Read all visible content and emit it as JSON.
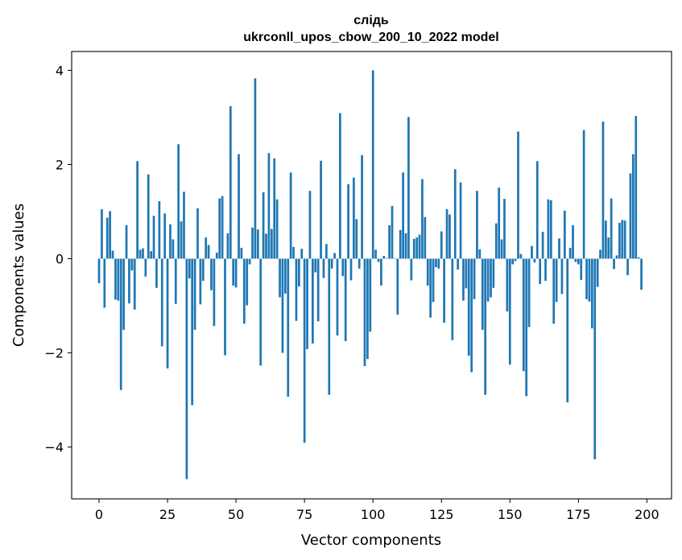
{
  "chart_data": {
    "type": "bar",
    "title_line1": "слідь",
    "title_line2": "ukrconll_upos_cbow_200_10_2022 model",
    "xlabel": "Vector components",
    "ylabel": "Components values",
    "xlim": [
      -10,
      209
    ],
    "ylim": [
      -5.1,
      4.4
    ],
    "x_ticks": [
      0,
      25,
      50,
      75,
      100,
      125,
      150,
      175,
      200
    ],
    "y_ticks": [
      -4,
      -2,
      0,
      2,
      4
    ],
    "x_tick_labels": [
      "0",
      "25",
      "50",
      "75",
      "100",
      "125",
      "150",
      "175",
      "200"
    ],
    "y_tick_labels": [
      "−4",
      "−2",
      "0",
      "2",
      "4"
    ],
    "grid": false,
    "bar_color": "#1f77b4",
    "values": [
      -0.52,
      1.05,
      -1.04,
      0.87,
      1.01,
      0.17,
      -0.87,
      -0.89,
      -2.79,
      -1.51,
      0.71,
      -0.95,
      -0.25,
      -1.08,
      2.07,
      0.19,
      0.22,
      -0.38,
      1.79,
      0.16,
      0.91,
      -0.62,
      1.22,
      -1.86,
      0.96,
      -2.33,
      0.73,
      0.41,
      -0.96,
      2.43,
      0.79,
      1.42,
      -4.68,
      -0.42,
      -3.11,
      -1.51,
      1.07,
      -0.97,
      -0.47,
      0.45,
      0.29,
      -0.67,
      -1.43,
      0.13,
      1.28,
      1.33,
      -2.05,
      0.54,
      3.24,
      -0.57,
      -0.61,
      2.22,
      0.23,
      -1.38,
      -0.99,
      -0.12,
      0.66,
      3.83,
      0.62,
      -2.27,
      1.41,
      0.53,
      2.24,
      0.63,
      2.13,
      1.26,
      -0.82,
      -2.0,
      -0.74,
      -2.93,
      1.83,
      0.25,
      -1.32,
      -0.59,
      0.21,
      -3.91,
      -1.92,
      1.44,
      -1.8,
      -0.29,
      -1.33,
      2.08,
      -0.41,
      0.31,
      -2.89,
      -0.21,
      0.12,
      -1.63,
      3.09,
      -0.37,
      -1.75,
      1.58,
      -0.46,
      1.72,
      0.84,
      -0.21,
      2.2,
      -2.28,
      -2.13,
      -1.55,
      4.0,
      0.19,
      -0.07,
      -0.57,
      0.06,
      0.01,
      0.71,
      1.12,
      0.01,
      -1.19,
      0.61,
      1.83,
      0.54,
      3.01,
      -0.46,
      0.42,
      0.45,
      0.51,
      1.69,
      0.88,
      -0.57,
      -1.25,
      -0.92,
      -0.18,
      -0.21,
      0.58,
      -1.36,
      1.05,
      0.94,
      -1.73,
      1.9,
      -0.23,
      1.62,
      -0.89,
      -0.63,
      -2.06,
      -2.41,
      -0.86,
      1.44,
      0.2,
      -1.51,
      -2.89,
      -0.91,
      -0.82,
      -0.62,
      0.75,
      1.51,
      0.41,
      1.27,
      -1.12,
      -2.25,
      -0.12,
      -0.05,
      2.7,
      0.1,
      -2.39,
      -2.92,
      -1.45,
      0.27,
      -0.08,
      2.07,
      -0.54,
      0.57,
      -0.47,
      1.26,
      1.24,
      -1.38,
      -0.92,
      0.43,
      -0.75,
      1.02,
      -3.05,
      0.23,
      0.71,
      -0.07,
      -0.12,
      -0.45,
      2.73,
      -0.86,
      -0.91,
      -1.48,
      -4.26,
      -0.6,
      0.19,
      2.91,
      0.81,
      0.45,
      1.28,
      -0.22,
      0.07,
      0.76,
      0.82,
      0.81,
      -0.35,
      1.81,
      2.22,
      3.03,
      0.03,
      -0.66
    ]
  }
}
